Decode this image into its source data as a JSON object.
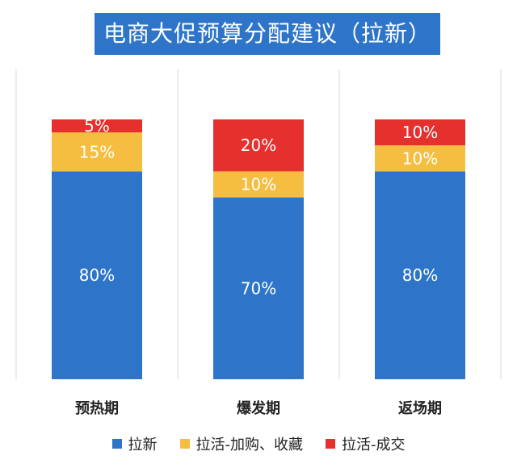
{
  "chart_data": {
    "type": "bar",
    "stacked": true,
    "title": "电商大促预算分配建议（拉新）",
    "categories": [
      "预热期",
      "爆发期",
      "返场期"
    ],
    "series": [
      {
        "name": "拉新",
        "color": "#2e75c9",
        "values": [
          80,
          70,
          80
        ],
        "labels": [
          "80%",
          "70%",
          "80%"
        ]
      },
      {
        "name": "拉活-加购、收藏",
        "color": "#f5be41",
        "values": [
          15,
          10,
          10
        ],
        "labels": [
          "15%",
          "10%",
          "10%"
        ]
      },
      {
        "name": "拉活-成交",
        "color": "#e5302d",
        "values": [
          5,
          20,
          10
        ],
        "labels": [
          "5%",
          "20%",
          "10%"
        ]
      }
    ],
    "ylim": [
      0,
      100
    ],
    "grid": false,
    "legend_position": "bottom"
  }
}
